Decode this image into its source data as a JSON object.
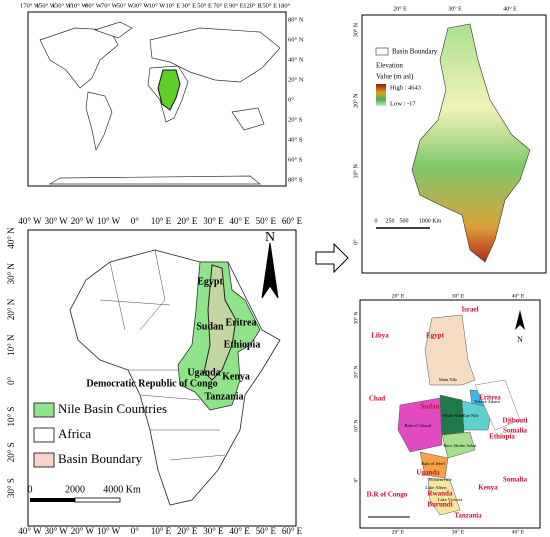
{
  "world_map": {
    "top_ticks": [
      "170° W",
      "150° W",
      "130° W",
      "110° W",
      "90° W",
      "70° W",
      "50° W",
      "30° W",
      "10° W",
      "10° E",
      "30° E",
      "50° E",
      "70° E",
      "90° E",
      "120° E",
      "150° E",
      "180°"
    ],
    "right_ticks": [
      "80° N",
      "60° N",
      "40° N",
      "20° N",
      "0°",
      "20° S",
      "40° S",
      "60° S",
      "80° S"
    ]
  },
  "africa_map": {
    "lon_ticks": [
      "40° W",
      "30° W",
      "20° W",
      "10° W",
      "0°",
      "10° E",
      "20° E",
      "30° E",
      "40° E",
      "50° E",
      "60° E"
    ],
    "lat_ticks": [
      "40° N",
      "30° N",
      "20° N",
      "10° N",
      "0°",
      "10° S",
      "20° S",
      "30° S"
    ],
    "north": "N",
    "countries": [
      "Egypt",
      "Sudan",
      "Eritrea",
      "Ethiopia",
      "Uganda",
      "Kenya",
      "Democratic Republic of Congo",
      "Tanzania"
    ],
    "legend": [
      "Nile Basin Countries",
      "Africa",
      "Basin Boundary"
    ],
    "scale": [
      "0",
      "2000",
      "4000 Km"
    ]
  },
  "elevation_map": {
    "lon_ticks": [
      "20° E",
      "30° E",
      "40° E"
    ],
    "lat_ticks": [
      "30° N",
      "20° N",
      "10° N",
      "0°"
    ],
    "legend_boundary": "Basin Boundary",
    "legend_title": "Elevation",
    "legend_unit": "Value (m asl)",
    "high": "High : 4643",
    "low": "Low : -17",
    "scale": [
      "0",
      "250",
      "500",
      "1000 Km"
    ]
  },
  "subbasin_map": {
    "lon_ticks": [
      "20° E",
      "30° E",
      "40° E"
    ],
    "lat_ticks": [
      "30° N",
      "20° N",
      "10° N",
      "0°"
    ],
    "north": "N",
    "countries": [
      "Israel",
      "Libya",
      "Egypt",
      "Chad",
      "Sudan",
      "Eritrea",
      "Djibouti",
      "Somalia",
      "Ethiopia",
      "Uganda",
      "Kenya",
      "Somalia",
      "Rwanda",
      "Burundi",
      "D.R of Congo",
      "Tanzania"
    ],
    "basins": [
      "Main Nile",
      "Tekeze Atbara",
      "White Nile",
      "Blue Nile",
      "Bahr el Ghazal",
      "Baro Akobo Sobat",
      "Bahr el Jebel",
      "Victoria Nile",
      "Lake Albert",
      "Lake Victoria"
    ]
  }
}
